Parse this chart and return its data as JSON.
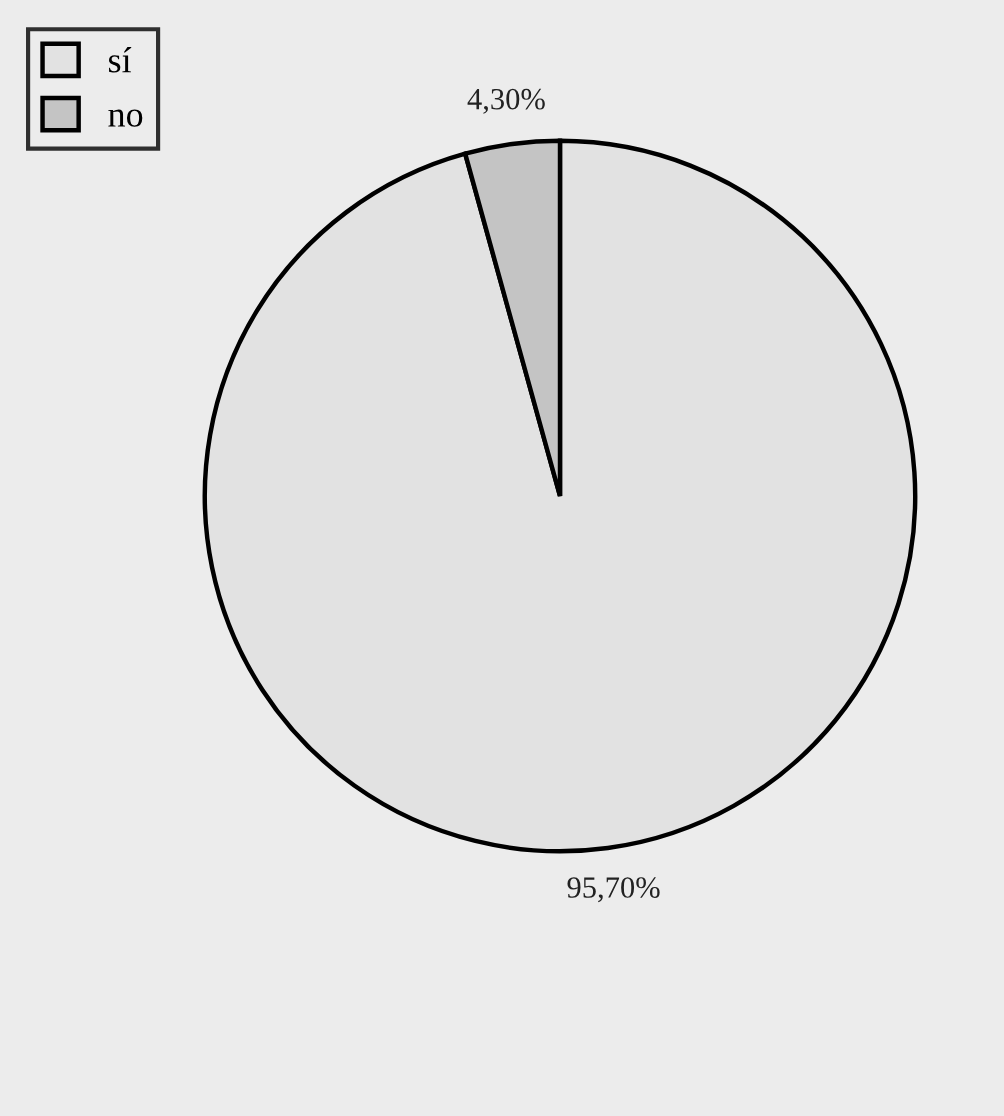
{
  "chart_data": {
    "type": "pie",
    "categories": [
      "sí",
      "no"
    ],
    "values": [
      95.7,
      4.3
    ],
    "colors": [
      "#e2e2e2",
      "#c4c4c4"
    ],
    "value_labels": [
      "95,70%",
      "4,30%"
    ],
    "legend": "top left"
  }
}
